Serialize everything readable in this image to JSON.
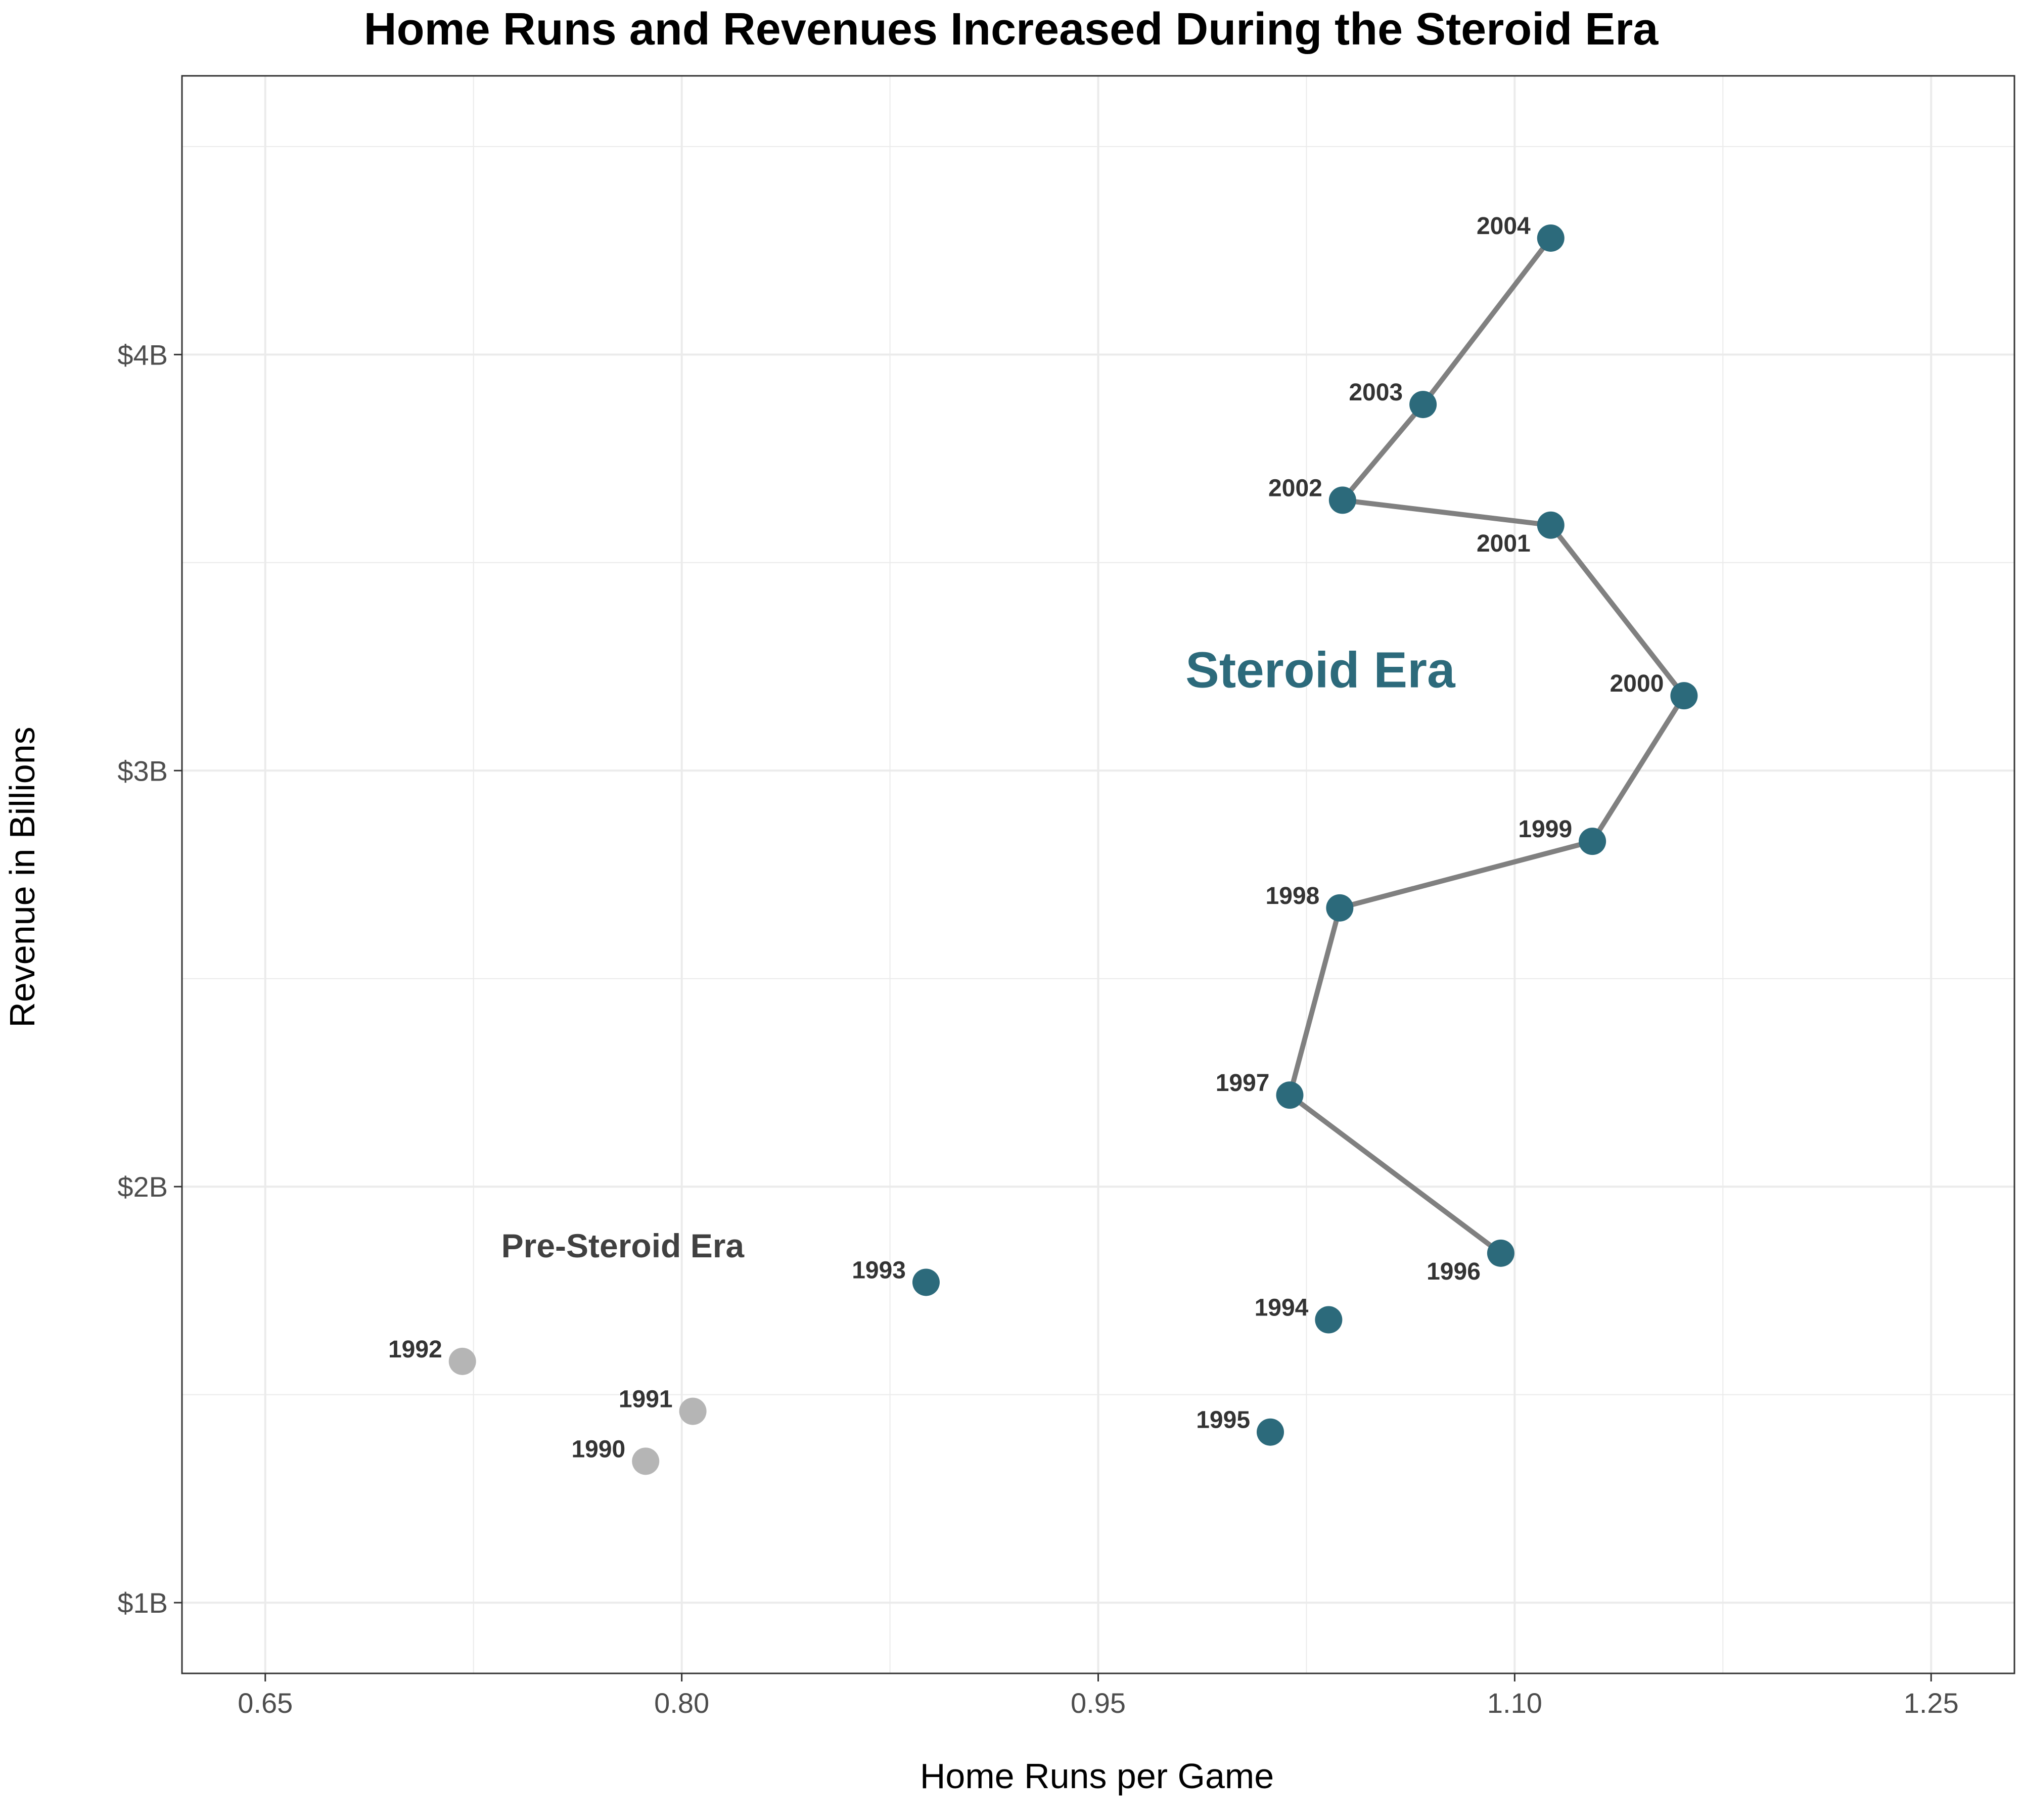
{
  "colors": {
    "steroid": "#2C6A7B",
    "pre_steroid": "#B5B5B5",
    "line": "#808080",
    "grid": "#EBEBEB",
    "panel_border": "#333333"
  },
  "chart_data": {
    "type": "scatter",
    "title": "Home Runs and Revenues Increased During the Steroid Era",
    "xlabel": "Home Runs per Game",
    "ylabel": "Revenue in Billions",
    "xlim": [
      0.62,
      1.28
    ],
    "ylim": [
      0.83,
      4.67
    ],
    "x_ticks": [
      0.65,
      0.8,
      0.95,
      1.1,
      1.25
    ],
    "x_tick_labels": [
      "0.65",
      "0.80",
      "0.95",
      "1.10",
      "1.25"
    ],
    "y_ticks": [
      1,
      2,
      3,
      4
    ],
    "y_tick_labels": [
      "$1B",
      "$2B",
      "$3B",
      "$4B"
    ],
    "grid": true,
    "points": [
      {
        "year": "1990",
        "x": 0.787,
        "y": 1.34,
        "era": "pre"
      },
      {
        "year": "1991",
        "x": 0.804,
        "y": 1.46,
        "era": "pre"
      },
      {
        "year": "1992",
        "x": 0.721,
        "y": 1.58,
        "era": "pre"
      },
      {
        "year": "1993",
        "x": 0.888,
        "y": 1.77,
        "era": "steroid"
      },
      {
        "year": "1994",
        "x": 1.033,
        "y": 1.68,
        "era": "steroid"
      },
      {
        "year": "1995",
        "x": 1.012,
        "y": 1.41,
        "era": "steroid"
      },
      {
        "year": "1996",
        "x": 1.095,
        "y": 1.84,
        "era": "steroid"
      },
      {
        "year": "1997",
        "x": 1.019,
        "y": 2.22,
        "era": "steroid"
      },
      {
        "year": "1998",
        "x": 1.037,
        "y": 2.67,
        "era": "steroid"
      },
      {
        "year": "1999",
        "x": 1.128,
        "y": 2.83,
        "era": "steroid"
      },
      {
        "year": "2000",
        "x": 1.161,
        "y": 3.18,
        "era": "steroid"
      },
      {
        "year": "2001",
        "x": 1.113,
        "y": 3.59,
        "era": "steroid"
      },
      {
        "year": "2002",
        "x": 1.038,
        "y": 3.65,
        "era": "steroid"
      },
      {
        "year": "2003",
        "x": 1.067,
        "y": 3.88,
        "era": "steroid"
      },
      {
        "year": "2004",
        "x": 1.113,
        "y": 4.28,
        "era": "steroid"
      }
    ],
    "connected_path": [
      "1996",
      "1997",
      "1998",
      "1999",
      "2000",
      "2001",
      "2002",
      "2003",
      "2004"
    ],
    "annotations": [
      {
        "text": "Steroid Era",
        "x": 1.03,
        "y": 3.2,
        "style": "main"
      },
      {
        "text": "Pre-Steroid Era",
        "x": 0.735,
        "y": 1.83,
        "style": "pre"
      }
    ]
  }
}
